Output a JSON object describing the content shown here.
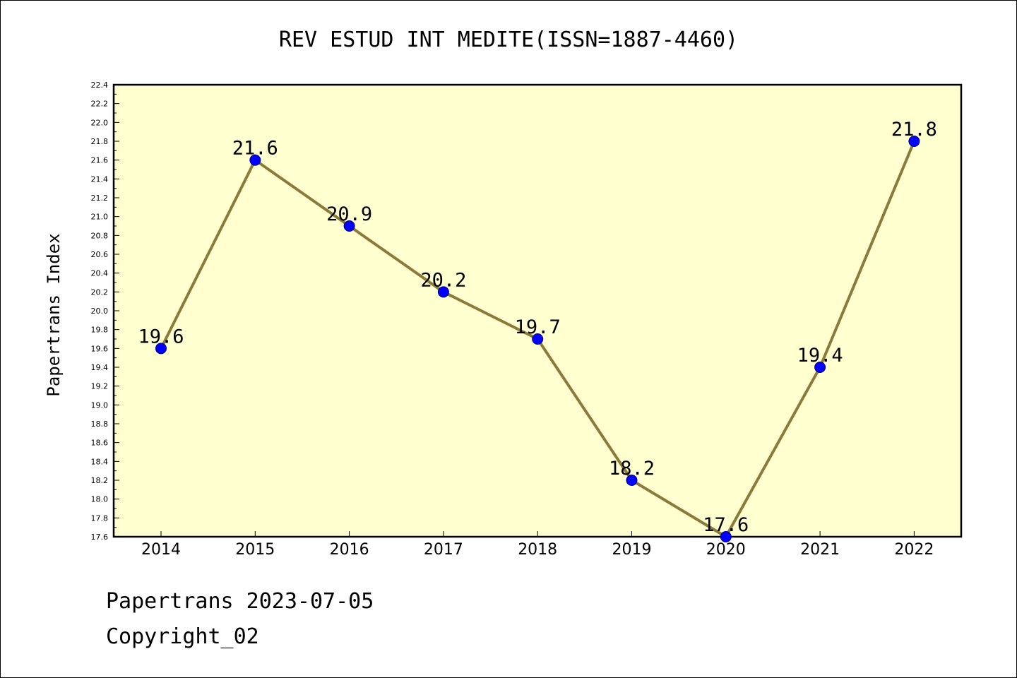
{
  "chart_data": {
    "type": "line",
    "title": "REV ESTUD INT MEDITE(ISSN=1887-4460)",
    "xlabel": "",
    "ylabel": "Papertrans Index",
    "categories": [
      "2014",
      "2015",
      "2016",
      "2017",
      "2018",
      "2019",
      "2020",
      "2021",
      "2022"
    ],
    "series": [
      {
        "values": [
          19.6,
          21.6,
          20.9,
          20.2,
          19.7,
          18.2,
          17.6,
          19.4,
          21.8
        ]
      }
    ],
    "data_labels": [
      "19.6",
      "21.6",
      "20.9",
      "20.2",
      "19.7",
      "18.2",
      "17.6",
      "19.4",
      "21.8"
    ],
    "ylim": [
      17.6,
      22.4
    ],
    "yticks": [
      "17.6",
      "17.8",
      "18.0",
      "18.2",
      "18.4",
      "18.6",
      "18.8",
      "19.0",
      "19.2",
      "19.4",
      "19.6",
      "19.8",
      "20.0",
      "20.2",
      "20.4",
      "20.6",
      "20.8",
      "21.0",
      "21.2",
      "21.4",
      "21.6",
      "21.8",
      "22.0",
      "22.2",
      "22.4"
    ],
    "grid": false,
    "colors": {
      "plot_background": "#ffffd0",
      "line": "#8b7a3a",
      "marker": "#0000ff",
      "axes": "#000000"
    }
  },
  "footer": {
    "line1": "Papertrans 2023-07-05",
    "line2": "Copyright_02"
  }
}
